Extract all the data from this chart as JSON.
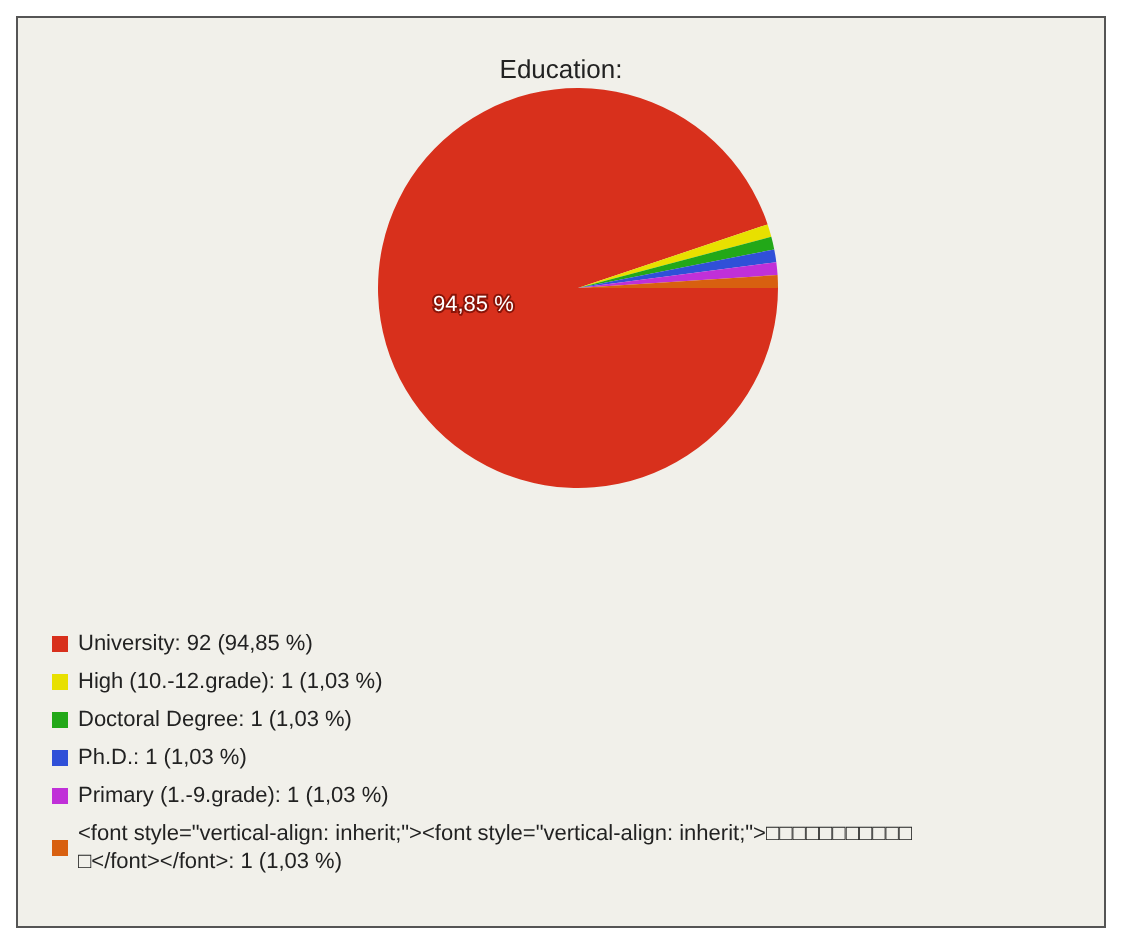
{
  "chart_data": {
    "type": "pie",
    "title": "Education:",
    "categories": [
      "University: 92 (94,85 %)",
      "High (10.-12.grade): 1 (1,03 %)",
      "Doctoral Degree: 1 (1,03 %)",
      "Ph.D.: 1 (1,03 %)",
      "Primary (1.-9.grade): 1 (1,03 %)",
      "<font style=\"vertical-align: inherit;\"><font style=\"vertical-align: inherit;\">□□□□□□□□□□□□</font></font>: 1 (1,03 %)"
    ],
    "values": [
      94.85,
      1.03,
      1.03,
      1.03,
      1.03,
      1.03
    ],
    "colors": [
      "#d8301c",
      "#e8e000",
      "#22a818",
      "#3050d8",
      "#c030d8",
      "#d86010"
    ],
    "value_labels": [
      "94,85 %",
      null,
      null,
      null,
      null,
      null
    ],
    "legend": "bottom left"
  }
}
